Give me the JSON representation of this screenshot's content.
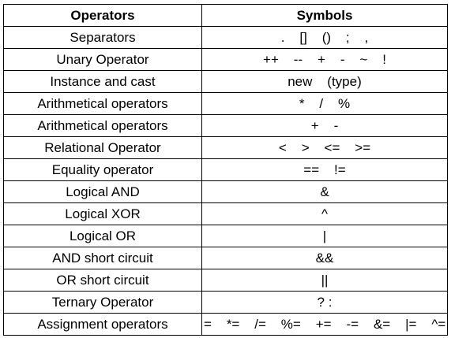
{
  "table": {
    "headers": [
      "Operators",
      "Symbols"
    ],
    "rows": [
      {
        "operator": "Separators",
        "symbols": ".    []    ()    ;    ,"
      },
      {
        "operator": "Unary Operator",
        "symbols": "++    --    +    -    ~    !"
      },
      {
        "operator": "Instance and cast",
        "symbols": "new    (type)"
      },
      {
        "operator": "Arithmetical operators",
        "symbols": "*    /    %"
      },
      {
        "operator": "Arithmetical operators",
        "symbols": "+    -"
      },
      {
        "operator": "Relational Operator",
        "symbols": "<    >    <=    >="
      },
      {
        "operator": "Equality operator",
        "symbols": "==    !="
      },
      {
        "operator": "Logical AND",
        "symbols": "&"
      },
      {
        "operator": "Logical XOR",
        "symbols": "^"
      },
      {
        "operator": "Logical OR",
        "symbols": "|"
      },
      {
        "operator": "AND short circuit",
        "symbols": "&&"
      },
      {
        "operator": "OR short circuit",
        "symbols": "||"
      },
      {
        "operator": "Ternary Operator",
        "symbols": "? :"
      },
      {
        "operator": "Assignment operators",
        "symbols": "=    *=    /=    %=    +=    -=    &=    |=    ^="
      }
    ]
  }
}
